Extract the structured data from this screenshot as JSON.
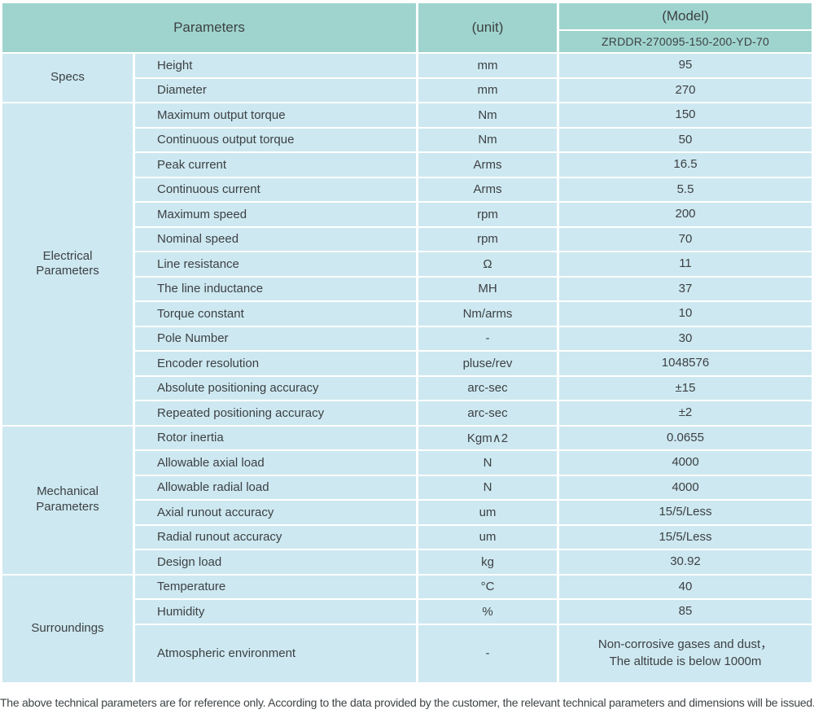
{
  "table": {
    "header": {
      "parameters_label": "Parameters",
      "unit_label": "(unit)",
      "model_label": "(Model)",
      "model_number": "ZRDDR-270095-150-200-YD-70"
    },
    "groups": [
      {
        "label": "Specs",
        "rows": [
          {
            "param": "Height",
            "unit": "mm",
            "value": "95"
          },
          {
            "param": "Diameter",
            "unit": "mm",
            "value": "270"
          }
        ]
      },
      {
        "label": "Electrical Parameters",
        "rows": [
          {
            "param": "Maximum output torque",
            "unit": "Nm",
            "value": "150"
          },
          {
            "param": "Continuous output torque",
            "unit": "Nm",
            "value": "50"
          },
          {
            "param": "Peak current",
            "unit": "Arms",
            "value": "16.5"
          },
          {
            "param": "Continuous current",
            "unit": "Arms",
            "value": "5.5"
          },
          {
            "param": "Maximum speed",
            "unit": "rpm",
            "value": "200"
          },
          {
            "param": "Nominal speed",
            "unit": "rpm",
            "value": "70"
          },
          {
            "param": "Line resistance",
            "unit": "Ω",
            "value": "11"
          },
          {
            "param": "The line inductance",
            "unit": "MH",
            "value": "37"
          },
          {
            "param": "Torque constant",
            "unit": "Nm/arms",
            "value": "10"
          },
          {
            "param": "Pole Number",
            "unit": "-",
            "value": "30"
          },
          {
            "param": "Encoder resolution",
            "unit": "pluse/rev",
            "value": "1048576"
          },
          {
            "param": "Absolute positioning accuracy",
            "unit": "arc-sec",
            "value": "±15"
          },
          {
            "param": "Repeated positioning accuracy",
            "unit": "arc-sec",
            "value": "±2"
          }
        ]
      },
      {
        "label": "Mechanical Parameters",
        "rows": [
          {
            "param": "Rotor inertia",
            "unit": "Kgm∧2",
            "value": "0.0655"
          },
          {
            "param": "Allowable axial load",
            "unit": "N",
            "value": "4000"
          },
          {
            "param": "Allowable radial load",
            "unit": "N",
            "value": "4000"
          },
          {
            "param": "Axial runout accuracy",
            "unit": "um",
            "value": "15/5/Less"
          },
          {
            "param": "Radial runout accuracy",
            "unit": "um",
            "value": "15/5/Less"
          },
          {
            "param": "Design load",
            "unit": "kg",
            "value": "30.92"
          }
        ]
      },
      {
        "label": "Surroundings",
        "rows": [
          {
            "param": "Temperature",
            "unit": "°C",
            "value": "40"
          },
          {
            "param": "Humidity",
            "unit": "%",
            "value": "85"
          },
          {
            "param": "Atmospheric environment",
            "unit": "-",
            "value": "Non-corrosive gases and dust，\nThe altitude is below 1000m"
          }
        ]
      }
    ]
  },
  "footer": {
    "note": "The above technical parameters are for reference only. According to the data provided by the customer, the relevant technical parameters and dimensions will be issued."
  },
  "colors": {
    "header_teal": "#9fd4ce",
    "body_blue": "#cde8f0",
    "text": "#3d4144",
    "divider": "#ffffff"
  }
}
